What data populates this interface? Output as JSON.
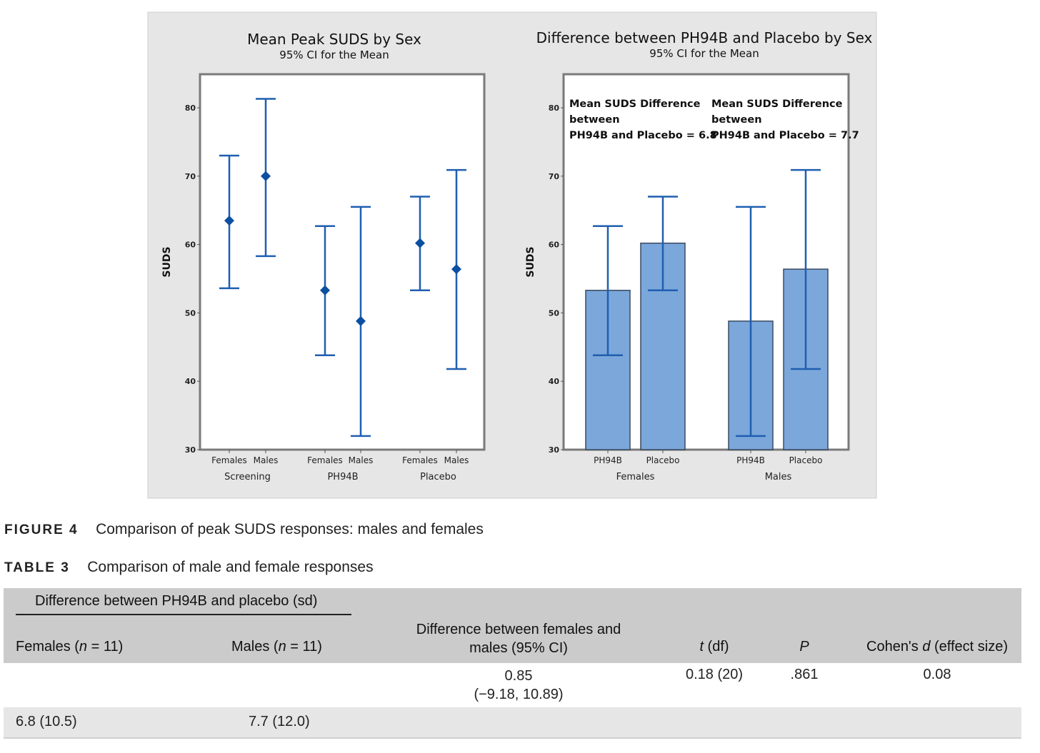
{
  "chart_data": [
    {
      "type": "errorbar",
      "title": "Mean Peak SUDS by Sex",
      "subtitle": "95% CI for the Mean",
      "ylabel": "SUDS",
      "ylim": [
        30,
        85
      ],
      "yticks": [
        "30",
        "40",
        "50",
        "60",
        "70",
        "80"
      ],
      "groups": [
        "Screening",
        "PH94B",
        "Placebo"
      ],
      "categories": [
        "Females",
        "Males",
        "Females",
        "Males",
        "Females",
        "Males"
      ],
      "mean": [
        63.5,
        70.0,
        53.3,
        48.8,
        60.2,
        56.4
      ],
      "lower": [
        53.6,
        58.3,
        43.8,
        32.0,
        53.3,
        41.8
      ],
      "upper": [
        73.0,
        81.3,
        62.7,
        65.5,
        67.0,
        70.9
      ]
    },
    {
      "type": "bar",
      "title": "Difference between PH94B and Placebo by Sex",
      "subtitle": "95% CI for the Mean",
      "ylabel": "SUDS",
      "ylim": [
        30,
        85
      ],
      "yticks": [
        "30",
        "40",
        "50",
        "60",
        "70",
        "80"
      ],
      "groups": [
        "Females",
        "Males"
      ],
      "categories": [
        "PH94B",
        "Placebo",
        "PH94B",
        "Placebo"
      ],
      "values": [
        53.3,
        60.2,
        48.8,
        56.4
      ],
      "lower": [
        43.8,
        53.3,
        32.0,
        41.8
      ],
      "upper": [
        62.7,
        67.0,
        65.5,
        70.9
      ],
      "annotations": [
        [
          "Mean SUDS Difference",
          "between",
          "PH94B and Placebo = 6.8"
        ],
        [
          "Mean SUDS Difference",
          "between",
          "PH94B and Placebo = 7.7"
        ]
      ],
      "colors": {
        "bar": "#7ba7db",
        "line": "#1f5fb0",
        "marker": "#0b4fa0"
      }
    }
  ],
  "figure_caption": {
    "label": "FIGURE 4",
    "text": "Comparison of peak SUDS responses: males and females"
  },
  "table_caption": {
    "label": "TABLE 3",
    "text": "Comparison of male and female responses"
  },
  "table": {
    "group_header": "Difference between PH94B and placebo (sd)",
    "headers": {
      "females": {
        "pre": "Females (",
        "it": "n",
        "post": " = 11)"
      },
      "males": {
        "pre": "Males (",
        "it": "n",
        "post": " = 11)"
      },
      "diff": [
        "Difference between females and",
        "males (95% CI)"
      ],
      "t": {
        "it": "t",
        "post": " (df)"
      },
      "p": "P",
      "cohen": {
        "pre": "Cohen's ",
        "it": "d",
        "post": " (effect size)"
      }
    },
    "row1": {
      "diff": [
        "0.85",
        "(−9.18, 10.89)"
      ],
      "t": "0.18 (20)",
      "p": ".861",
      "cohen": "0.08"
    },
    "row2": {
      "females": "6.8 (10.5)",
      "males": "7.7 (12.0)"
    }
  }
}
